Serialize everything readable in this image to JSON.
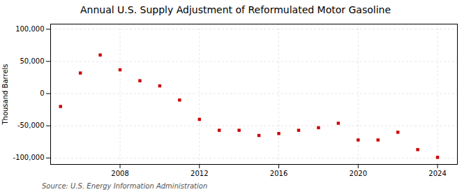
{
  "chart_data": {
    "type": "scatter",
    "title": "Annual U.S. Supply Adjustment of Reformulated Motor Gasoline",
    "ylabel": "Thousand Barrels",
    "source": "Source: U.S. Energy Information Administration",
    "x": [
      2005,
      2006,
      2007,
      2008,
      2009,
      2010,
      2011,
      2012,
      2013,
      2014,
      2015,
      2016,
      2017,
      2018,
      2019,
      2020,
      2021,
      2022,
      2023,
      2024
    ],
    "values": [
      -20000,
      32000,
      60000,
      37000,
      20000,
      12000,
      -10000,
      -40000,
      -57000,
      -57000,
      -65000,
      -62000,
      -57000,
      -53000,
      -46000,
      -72000,
      -72000,
      -60000,
      -87000,
      -99000
    ],
    "color": "#cc0000",
    "marker": "square",
    "xlim": [
      2004.5,
      2025
    ],
    "ylim": [
      -110000,
      108000
    ],
    "xticks": [
      2008,
      2012,
      2016,
      2020,
      2024
    ],
    "yticks": [
      {
        "value": -100000,
        "label": "-100,000"
      },
      {
        "value": -50000,
        "label": "-50,000"
      },
      0,
      {
        "value": 50000,
        "label": "50,000"
      },
      {
        "value": 100000,
        "label": "100,000"
      }
    ],
    "grid": true
  }
}
